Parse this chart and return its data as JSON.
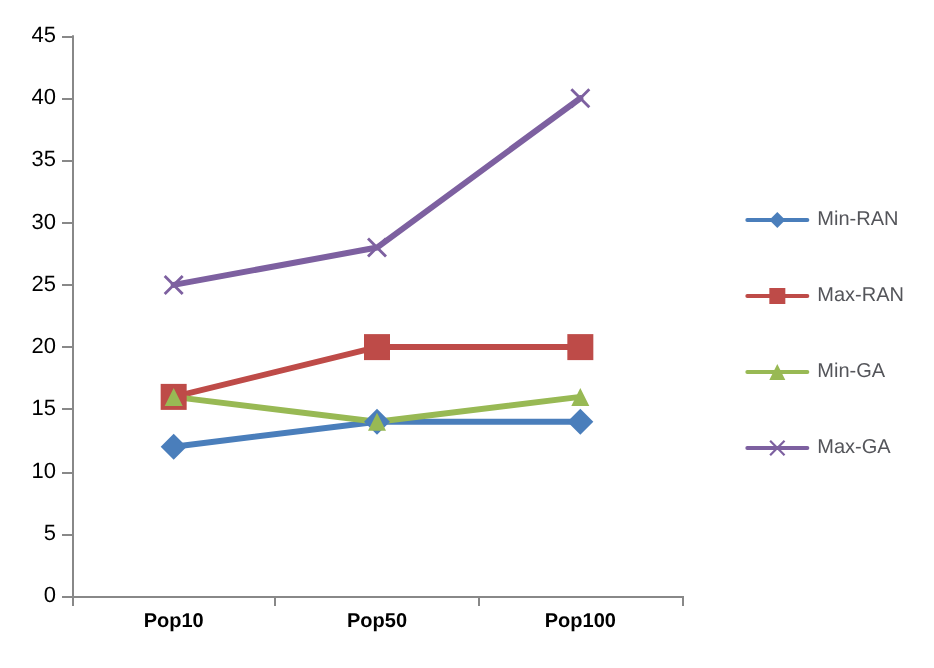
{
  "chart_data": {
    "type": "line",
    "categories": [
      "Pop10",
      "Pop50",
      "Pop100"
    ],
    "series": [
      {
        "name": "Min-RAN",
        "color": "#4a7ebb",
        "marker": "diamond",
        "values": [
          12,
          14,
          14
        ]
      },
      {
        "name": "Max-RAN",
        "color": "#be4b48",
        "marker": "square",
        "values": [
          16,
          20,
          20
        ]
      },
      {
        "name": "Min-GA",
        "color": "#98b954",
        "marker": "triangle",
        "values": [
          16,
          14,
          16
        ]
      },
      {
        "name": "Max-GA",
        "color": "#7d60a0",
        "marker": "cross",
        "values": [
          25,
          28,
          40
        ]
      }
    ],
    "ylim": [
      0,
      45
    ],
    "yticks": [
      0,
      5,
      10,
      15,
      20,
      25,
      30,
      35,
      40,
      45
    ],
    "grid": false,
    "legend": "right"
  }
}
